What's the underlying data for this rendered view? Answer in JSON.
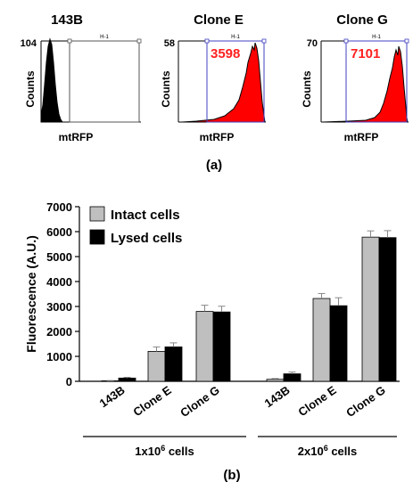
{
  "chart_data": [
    {
      "type": "histogram",
      "panel_label": "(a)",
      "histograms": [
        {
          "title": "143B",
          "ymax_label": "104",
          "ylabel": "Counts",
          "xlabel": "mtRFP",
          "gate_label": "H-1",
          "gate_value": "",
          "fill": "#000000"
        },
        {
          "title": "Clone E",
          "ymax_label": "58",
          "ylabel": "Counts",
          "xlabel": "mtRFP",
          "gate_label": "H-1",
          "gate_value": "3598",
          "fill": "#ff0000"
        },
        {
          "title": "Clone G",
          "ymax_label": "70",
          "ylabel": "Counts",
          "xlabel": "mtRFP",
          "gate_label": "H-1",
          "gate_value": "7101",
          "fill": "#ff0000"
        }
      ]
    },
    {
      "type": "bar",
      "panel_label": "(b)",
      "ylabel": "Fluorescence (A.U.)",
      "ylim": [
        0,
        7000
      ],
      "yticks": [
        "0",
        "1000",
        "2000",
        "3000",
        "4000",
        "5000",
        "6000",
        "7000"
      ],
      "categories": [
        "143B",
        "Clone E",
        "Clone G",
        "143B",
        "Clone E",
        "Clone G"
      ],
      "groups": [
        {
          "label_base": "1x10",
          "label_sup": "6",
          "label_suffix": " cells"
        },
        {
          "label_base": "2x10",
          "label_sup": "6",
          "label_suffix": " cells"
        }
      ],
      "series": [
        {
          "name": "Intact cells",
          "color": "#bfbfbf",
          "values": [
            20,
            1200,
            2800,
            80,
            3320,
            5780
          ],
          "errors": [
            10,
            180,
            250,
            30,
            200,
            250
          ]
        },
        {
          "name": "Lysed cells",
          "color": "#000000",
          "values": [
            130,
            1380,
            2780,
            300,
            3030,
            5760
          ],
          "errors": [
            30,
            160,
            230,
            70,
            320,
            280
          ]
        }
      ],
      "legend_position": "top-left"
    }
  ]
}
